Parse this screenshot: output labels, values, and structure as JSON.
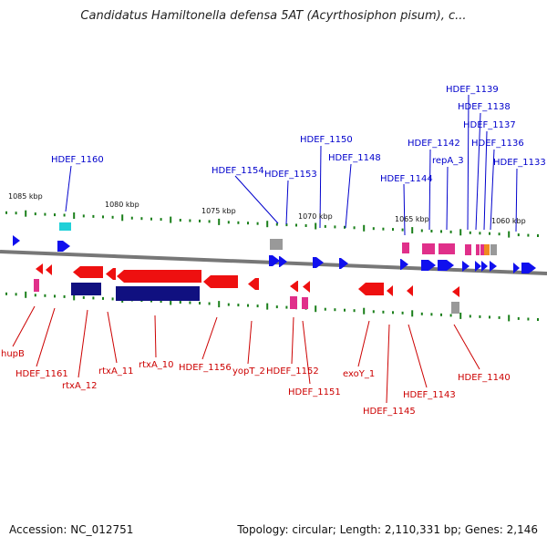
{
  "title": "Candidatus Hamiltonella defensa 5AT (Acyrthosiphon pisum), c...",
  "footer": {
    "accession": "Accession: NC_012751",
    "topology": "Topology: circular; Length: 2,110,331 bp; Genes: 2,146"
  },
  "colors": {
    "forward_label": "#0000cc",
    "reverse_label": "#cc0000",
    "forward_gene": "#1010ee",
    "reverse_gene": "#ee1010",
    "backbone": "#777777",
    "tick": "#1a7f1a",
    "pink": "#e0308a",
    "navy": "#101080",
    "cyan": "#20d0d8",
    "gray": "#999999",
    "orange": "#f08a20"
  },
  "kbp_labels": [
    "1085 kbp",
    "1080 kbp",
    "1075 kbp",
    "1070 kbp",
    "1065 kbp",
    "1060 kbp"
  ],
  "forward_labels": [
    "HDEF_1160",
    "HDEF_1154",
    "HDEF_1153",
    "HDEF_1150",
    "HDEF_1148",
    "HDEF_1144",
    "HDEF_1142",
    "repA_3",
    "HDEF_1139",
    "HDEF_1138",
    "HDEF_1137",
    "HDEF_1136",
    "HDEF_1133"
  ],
  "reverse_labels": [
    "hupB",
    "HDEF_1161",
    "rtxA_12",
    "rtxA_11",
    "rtxA_10",
    "HDEF_1156",
    "yopT_2",
    "HDEF_1152",
    "HDEF_1151",
    "exoY_1",
    "HDEF_1145",
    "HDEF_1143",
    "HDEF_1140"
  ]
}
